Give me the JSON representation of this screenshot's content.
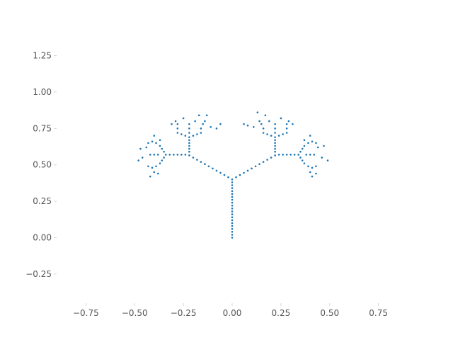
{
  "chart_data": {
    "type": "scatter",
    "title": "",
    "xlabel": "",
    "ylabel": "",
    "xlim": [
      -0.9,
      0.9
    ],
    "ylim": [
      -0.45,
      1.35
    ],
    "x_ticks": [
      -0.75,
      -0.5,
      -0.25,
      0.0,
      0.25,
      0.5,
      0.75
    ],
    "x_tick_labels": [
      "−0.75",
      "−0.50",
      "−0.25",
      "0.00",
      "0.25",
      "0.50",
      "0.75"
    ],
    "y_ticks": [
      -0.25,
      0.0,
      0.25,
      0.5,
      0.75,
      1.0,
      1.25
    ],
    "y_tick_labels": [
      "−0.25",
      "0.00",
      "0.25",
      "0.50",
      "0.75",
      "1.00",
      "1.25"
    ],
    "grid": false,
    "series": [
      {
        "color": "#1f77b4",
        "points": [
          [
            0,
            0
          ],
          [
            0,
            0.02
          ],
          [
            0,
            0.04
          ],
          [
            0,
            0.06
          ],
          [
            0,
            0.08
          ],
          [
            0,
            0.1
          ],
          [
            0,
            0.12
          ],
          [
            0,
            0.14
          ],
          [
            0,
            0.16
          ],
          [
            0,
            0.18
          ],
          [
            0,
            0.2
          ],
          [
            0,
            0.22
          ],
          [
            0,
            0.24
          ],
          [
            0,
            0.26
          ],
          [
            0,
            0.28
          ],
          [
            0,
            0.3
          ],
          [
            0,
            0.32
          ],
          [
            0,
            0.34
          ],
          [
            0,
            0.36
          ],
          [
            0,
            0.38
          ],
          [
            0,
            0.4
          ],
          [
            -0.02,
            0.415
          ],
          [
            -0.04,
            0.43
          ],
          [
            -0.06,
            0.445
          ],
          [
            -0.08,
            0.46
          ],
          [
            -0.1,
            0.475
          ],
          [
            -0.12,
            0.49
          ],
          [
            -0.14,
            0.505
          ],
          [
            -0.16,
            0.52
          ],
          [
            -0.18,
            0.535
          ],
          [
            -0.2,
            0.55
          ],
          [
            -0.22,
            0.565
          ],
          [
            0.02,
            0.415
          ],
          [
            0.04,
            0.43
          ],
          [
            0.06,
            0.445
          ],
          [
            0.08,
            0.46
          ],
          [
            0.1,
            0.475
          ],
          [
            0.12,
            0.49
          ],
          [
            0.14,
            0.505
          ],
          [
            0.16,
            0.52
          ],
          [
            0.18,
            0.535
          ],
          [
            0.2,
            0.55
          ],
          [
            0.22,
            0.565
          ],
          [
            -0.22,
            0.59
          ],
          [
            -0.22,
            0.61
          ],
          [
            -0.22,
            0.63
          ],
          [
            -0.22,
            0.65
          ],
          [
            -0.22,
            0.67
          ],
          [
            -0.22,
            0.69
          ],
          [
            -0.24,
            0.57
          ],
          [
            -0.26,
            0.57
          ],
          [
            -0.28,
            0.57
          ],
          [
            -0.3,
            0.57
          ],
          [
            -0.32,
            0.57
          ],
          [
            -0.34,
            0.57
          ],
          [
            0.22,
            0.59
          ],
          [
            0.22,
            0.61
          ],
          [
            0.22,
            0.63
          ],
          [
            0.22,
            0.65
          ],
          [
            0.22,
            0.67
          ],
          [
            0.22,
            0.69
          ],
          [
            0.24,
            0.57
          ],
          [
            0.26,
            0.57
          ],
          [
            0.28,
            0.57
          ],
          [
            0.3,
            0.57
          ],
          [
            0.32,
            0.57
          ],
          [
            0.34,
            0.57
          ],
          [
            -0.24,
            0.7
          ],
          [
            -0.26,
            0.71
          ],
          [
            -0.28,
            0.72
          ],
          [
            -0.2,
            0.7
          ],
          [
            -0.18,
            0.71
          ],
          [
            -0.16,
            0.72
          ],
          [
            -0.22,
            0.72
          ],
          [
            -0.22,
            0.75
          ],
          [
            -0.22,
            0.78
          ],
          [
            -0.28,
            0.75
          ],
          [
            -0.28,
            0.78
          ],
          [
            -0.29,
            0.8
          ],
          [
            -0.16,
            0.75
          ],
          [
            -0.15,
            0.78
          ],
          [
            -0.14,
            0.8
          ],
          [
            -0.19,
            0.8
          ],
          [
            -0.17,
            0.84
          ],
          [
            -0.13,
            0.84
          ],
          [
            -0.25,
            0.82
          ],
          [
            -0.31,
            0.78
          ],
          [
            -0.11,
            0.76
          ],
          [
            -0.08,
            0.75
          ],
          [
            -0.06,
            0.78
          ],
          [
            0.24,
            0.7
          ],
          [
            0.26,
            0.71
          ],
          [
            0.28,
            0.72
          ],
          [
            0.2,
            0.7
          ],
          [
            0.18,
            0.71
          ],
          [
            0.16,
            0.72
          ],
          [
            0.22,
            0.72
          ],
          [
            0.22,
            0.75
          ],
          [
            0.22,
            0.78
          ],
          [
            0.28,
            0.75
          ],
          [
            0.28,
            0.78
          ],
          [
            0.29,
            0.8
          ],
          [
            0.16,
            0.75
          ],
          [
            0.15,
            0.78
          ],
          [
            0.14,
            0.8
          ],
          [
            0.19,
            0.8
          ],
          [
            0.17,
            0.84
          ],
          [
            0.13,
            0.86
          ],
          [
            0.25,
            0.82
          ],
          [
            0.31,
            0.78
          ],
          [
            0.11,
            0.76
          ],
          [
            0.08,
            0.77
          ],
          [
            0.06,
            0.78
          ],
          [
            -0.35,
            0.59
          ],
          [
            -0.36,
            0.61
          ],
          [
            -0.37,
            0.63
          ],
          [
            -0.35,
            0.55
          ],
          [
            -0.36,
            0.53
          ],
          [
            -0.37,
            0.51
          ],
          [
            -0.38,
            0.57
          ],
          [
            -0.4,
            0.57
          ],
          [
            -0.42,
            0.57
          ],
          [
            -0.39,
            0.65
          ],
          [
            -0.41,
            0.66
          ],
          [
            -0.43,
            0.65
          ],
          [
            -0.39,
            0.49
          ],
          [
            -0.41,
            0.48
          ],
          [
            -0.43,
            0.49
          ],
          [
            -0.4,
            0.7
          ],
          [
            -0.44,
            0.62
          ],
          [
            -0.47,
            0.61
          ],
          [
            -0.46,
            0.55
          ],
          [
            -0.48,
            0.53
          ],
          [
            -0.4,
            0.45
          ],
          [
            -0.38,
            0.44
          ],
          [
            -0.42,
            0.42
          ],
          [
            -0.37,
            0.67
          ],
          [
            0.35,
            0.59
          ],
          [
            0.36,
            0.61
          ],
          [
            0.37,
            0.63
          ],
          [
            0.35,
            0.55
          ],
          [
            0.36,
            0.53
          ],
          [
            0.37,
            0.51
          ],
          [
            0.38,
            0.57
          ],
          [
            0.4,
            0.57
          ],
          [
            0.42,
            0.57
          ],
          [
            0.39,
            0.65
          ],
          [
            0.41,
            0.66
          ],
          [
            0.43,
            0.65
          ],
          [
            0.39,
            0.49
          ],
          [
            0.41,
            0.48
          ],
          [
            0.43,
            0.49
          ],
          [
            0.4,
            0.7
          ],
          [
            0.44,
            0.62
          ],
          [
            0.47,
            0.63
          ],
          [
            0.46,
            0.55
          ],
          [
            0.49,
            0.53
          ],
          [
            0.4,
            0.45
          ],
          [
            0.43,
            0.44
          ],
          [
            0.41,
            0.42
          ],
          [
            0.37,
            0.67
          ]
        ]
      }
    ]
  }
}
